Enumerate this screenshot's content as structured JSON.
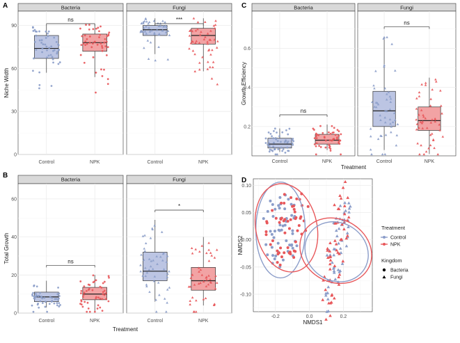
{
  "colors": {
    "control": "#8b9dc9",
    "npk": "#e8575a",
    "control_box": "#bcc5e3",
    "npk_box": "#f2a3a4"
  },
  "chart_data": [
    {
      "panel": "A",
      "type": "box",
      "ylabel": "Niche Width",
      "xlabel": "",
      "ylim": [
        0,
        100
      ],
      "yticks": [
        0,
        30,
        60,
        90
      ],
      "facets": [
        {
          "title": "Bacteria",
          "significance": "ns",
          "categories": [
            "Control",
            "NPK"
          ],
          "boxes": [
            {
              "group": "Control",
              "min": 57,
              "q1": 67,
              "median": 74,
              "q3": 83,
              "max": 90
            },
            {
              "group": "NPK",
              "min": 54,
              "q1": 72,
              "median": 78,
              "q3": 84,
              "max": 91
            }
          ]
        },
        {
          "title": "Fungi",
          "significance": "***",
          "categories": [
            "Control",
            "NPK"
          ],
          "boxes": [
            {
              "group": "Control",
              "min": 70,
              "q1": 83,
              "median": 87,
              "q3": 90,
              "max": 95
            },
            {
              "group": "NPK",
              "min": 58,
              "q1": 77,
              "median": 83,
              "q3": 88,
              "max": 95
            }
          ]
        }
      ]
    },
    {
      "panel": "B",
      "type": "box",
      "ylabel": "Total Growth",
      "xlabel": "Treatment",
      "ylim": [
        0,
        68
      ],
      "yticks": [
        0,
        20,
        40,
        60
      ],
      "facets": [
        {
          "title": "Bacteria",
          "significance": "ns",
          "categories": [
            "Control",
            "NPK"
          ],
          "boxes": [
            {
              "group": "Control",
              "min": 3,
              "q1": 6,
              "median": 8.5,
              "q3": 11,
              "max": 17
            },
            {
              "group": "NPK",
              "min": 1,
              "q1": 7,
              "median": 10,
              "q3": 13.5,
              "max": 20
            }
          ]
        },
        {
          "title": "Fungi",
          "significance": "*",
          "categories": [
            "Control",
            "NPK"
          ],
          "boxes": [
            {
              "group": "Control",
              "min": 6,
              "q1": 17,
              "median": 22,
              "q3": 32,
              "max": 49
            },
            {
              "group": "NPK",
              "min": 4,
              "q1": 12,
              "median": 17,
              "q3": 24,
              "max": 40
            }
          ]
        }
      ]
    },
    {
      "panel": "C",
      "type": "box",
      "ylabel": "Growth Efficiency",
      "xlabel": "Treatment",
      "ylim": [
        0.05,
        0.79
      ],
      "yticks": [
        0.2,
        0.4,
        0.6
      ],
      "facets": [
        {
          "title": "Bacteria",
          "significance": "ns",
          "categories": [
            "Control",
            "NPK"
          ],
          "boxes": [
            {
              "group": "Control",
              "min": 0.07,
              "q1": 0.09,
              "median": 0.11,
              "q3": 0.14,
              "max": 0.19
            },
            {
              "group": "NPK",
              "min": 0.08,
              "q1": 0.11,
              "median": 0.13,
              "q3": 0.16,
              "max": 0.21
            }
          ]
        },
        {
          "title": "Fungi",
          "significance": "ns",
          "categories": [
            "Control",
            "NPK"
          ],
          "boxes": [
            {
              "group": "Control",
              "min": 0.08,
              "q1": 0.2,
              "median": 0.28,
              "q3": 0.38,
              "max": 0.66
            },
            {
              "group": "NPK",
              "min": 0.06,
              "q1": 0.18,
              "median": 0.23,
              "q3": 0.3,
              "max": 0.45
            }
          ]
        }
      ]
    },
    {
      "panel": "D",
      "type": "scatter",
      "xlabel": "NMDS1",
      "ylabel": "NMDS2",
      "xlim": [
        -0.33,
        0.37
      ],
      "ylim": [
        -0.132,
        0.112
      ],
      "xticks": [
        -0.2,
        0.0,
        0.2
      ],
      "yticks": [
        -0.1,
        -0.05,
        0.0,
        0.05,
        0.1
      ],
      "legend": {
        "treatment_title": "Treatment",
        "treatment": [
          "Control",
          "NPK"
        ],
        "kingdom_title": "Kingdom",
        "kingdom": [
          "Bacteria",
          "Fungi"
        ],
        "position": "right"
      },
      "ellipses": [
        {
          "group": "Control",
          "kingdom": "Bacteria",
          "cx": -0.17,
          "cy": 0.018,
          "rx": 0.145,
          "ry": 0.088,
          "angle_deg": 0
        },
        {
          "group": "NPK",
          "kingdom": "Bacteria",
          "cx": -0.135,
          "cy": 0.022,
          "rx": 0.18,
          "ry": 0.082,
          "angle_deg": 12
        },
        {
          "group": "Control",
          "kingdom": "Fungi",
          "cx": 0.16,
          "cy": -0.022,
          "rx": 0.17,
          "ry": 0.06,
          "angle_deg": 58
        },
        {
          "group": "NPK",
          "kingdom": "Fungi",
          "cx": 0.155,
          "cy": -0.02,
          "rx": 0.185,
          "ry": 0.068,
          "angle_deg": 62
        }
      ]
    }
  ]
}
